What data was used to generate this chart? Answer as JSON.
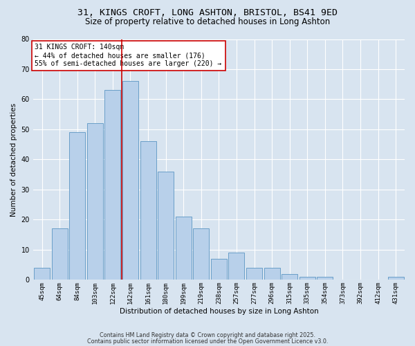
{
  "title_line1": "31, KINGS CROFT, LONG ASHTON, BRISTOL, BS41 9ED",
  "title_line2": "Size of property relative to detached houses in Long Ashton",
  "xlabel": "Distribution of detached houses by size in Long Ashton",
  "ylabel": "Number of detached properties",
  "categories": [
    "45sqm",
    "64sqm",
    "84sqm",
    "103sqm",
    "122sqm",
    "142sqm",
    "161sqm",
    "180sqm",
    "199sqm",
    "219sqm",
    "238sqm",
    "257sqm",
    "277sqm",
    "296sqm",
    "315sqm",
    "335sqm",
    "354sqm",
    "373sqm",
    "392sqm",
    "412sqm",
    "431sqm"
  ],
  "values": [
    4,
    17,
    49,
    52,
    63,
    66,
    46,
    36,
    21,
    17,
    7,
    9,
    4,
    4,
    2,
    1,
    1,
    0,
    0,
    0,
    1
  ],
  "bar_color": "#b8d0ea",
  "bar_edge_color": "#6a9fc8",
  "vline_color": "#cc0000",
  "vline_x_index": 5,
  "annotation_text": "31 KINGS CROFT: 140sqm\n← 44% of detached houses are smaller (176)\n55% of semi-detached houses are larger (220) →",
  "annotation_box_facecolor": "#ffffff",
  "annotation_box_edgecolor": "#cc0000",
  "background_color": "#d8e4f0",
  "plot_bg_color": "#d8e4f0",
  "ylim": [
    0,
    80
  ],
  "yticks": [
    0,
    10,
    20,
    30,
    40,
    50,
    60,
    70,
    80
  ],
  "footer_line1": "Contains HM Land Registry data © Crown copyright and database right 2025.",
  "footer_line2": "Contains public sector information licensed under the Open Government Licence v3.0."
}
